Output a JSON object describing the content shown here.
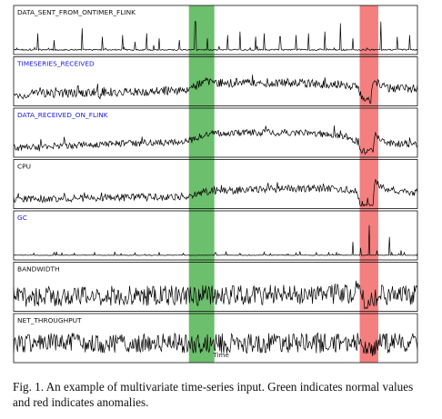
{
  "chart_data": {
    "type": "line",
    "xlabel": "Time",
    "ylabel": "",
    "grid": false,
    "x_extent": [
      0,
      1
    ],
    "highlights": [
      {
        "kind": "normal",
        "color": "#6cbf6c",
        "x_start": 0.434,
        "x_end": 0.497
      },
      {
        "kind": "anomaly",
        "color": "#f47f7f",
        "x_start": 0.857,
        "x_end": 0.903
      }
    ],
    "series": [
      {
        "name": "DATA_SENT_FROM_ONTIMER_FLINK",
        "label_color": "#111111",
        "style": "spiky",
        "baseline": 0.06,
        "noise": 0.02,
        "spikes": [
          [
            0.06,
            0.55
          ],
          [
            0.1,
            0.35
          ],
          [
            0.17,
            0.7
          ],
          [
            0.22,
            0.45
          ],
          [
            0.27,
            0.5
          ],
          [
            0.3,
            0.3
          ],
          [
            0.33,
            0.55
          ],
          [
            0.36,
            0.4
          ],
          [
            0.41,
            0.35
          ],
          [
            0.45,
            0.9
          ],
          [
            0.48,
            0.4
          ],
          [
            0.53,
            0.5
          ],
          [
            0.56,
            0.6
          ],
          [
            0.6,
            0.45
          ],
          [
            0.62,
            0.55
          ],
          [
            0.66,
            0.45
          ],
          [
            0.7,
            0.5
          ],
          [
            0.73,
            0.55
          ],
          [
            0.77,
            0.6
          ],
          [
            0.81,
            0.85
          ],
          [
            0.84,
            0.4
          ],
          [
            0.91,
            0.9
          ],
          [
            0.95,
            0.45
          ],
          [
            0.98,
            0.5
          ]
        ]
      },
      {
        "name": "TIMESERIES_RECEIVED",
        "label_color": "#1a1ad9",
        "style": "noisy",
        "levels": [
          [
            0,
            0.2
          ],
          [
            0.06,
            0.3
          ],
          [
            0.12,
            0.28
          ],
          [
            0.25,
            0.32
          ],
          [
            0.43,
            0.38
          ],
          [
            0.47,
            0.62
          ],
          [
            0.5,
            0.6
          ],
          [
            0.6,
            0.62
          ],
          [
            0.7,
            0.6
          ],
          [
            0.8,
            0.55
          ],
          [
            0.85,
            0.5
          ],
          [
            0.868,
            0.04
          ],
          [
            0.885,
            0.08
          ],
          [
            0.89,
            0.7
          ],
          [
            0.92,
            0.45
          ],
          [
            1,
            0.42
          ]
        ],
        "noise": 0.13
      },
      {
        "name": "DATA_RECEIVED_ON_FLINK",
        "label_color": "#1a1ad9",
        "style": "noisy",
        "levels": [
          [
            0,
            0.2
          ],
          [
            0.1,
            0.25
          ],
          [
            0.2,
            0.3
          ],
          [
            0.35,
            0.35
          ],
          [
            0.43,
            0.38
          ],
          [
            0.47,
            0.6
          ],
          [
            0.5,
            0.62
          ],
          [
            0.6,
            0.65
          ],
          [
            0.7,
            0.65
          ],
          [
            0.78,
            0.6
          ],
          [
            0.82,
            0.55
          ],
          [
            0.85,
            0.4
          ],
          [
            0.86,
            0.08
          ],
          [
            0.89,
            0.1
          ],
          [
            0.895,
            0.62
          ],
          [
            0.92,
            0.35
          ],
          [
            1,
            0.3
          ]
        ],
        "noise": 0.1
      },
      {
        "name": "CPU",
        "label_color": "#111111",
        "style": "noisy",
        "levels": [
          [
            0,
            0.2
          ],
          [
            0.12,
            0.22
          ],
          [
            0.3,
            0.25
          ],
          [
            0.43,
            0.28
          ],
          [
            0.46,
            0.4
          ],
          [
            0.5,
            0.45
          ],
          [
            0.6,
            0.48
          ],
          [
            0.7,
            0.52
          ],
          [
            0.8,
            0.5
          ],
          [
            0.85,
            0.45
          ],
          [
            0.86,
            0.04
          ],
          [
            0.89,
            0.05
          ],
          [
            0.895,
            0.7
          ],
          [
            0.92,
            0.5
          ],
          [
            1,
            0.4
          ]
        ],
        "noise": 0.11
      },
      {
        "name": "GC",
        "label_color": "#1a1ad9",
        "style": "spiky",
        "baseline": 0.06,
        "noise": 0.01,
        "spikes": [
          [
            0.05,
            0.12
          ],
          [
            0.1,
            0.15
          ],
          [
            0.15,
            0.12
          ],
          [
            0.2,
            0.14
          ],
          [
            0.25,
            0.16
          ],
          [
            0.3,
            0.13
          ],
          [
            0.36,
            0.15
          ],
          [
            0.42,
            0.12
          ],
          [
            0.5,
            0.14
          ],
          [
            0.56,
            0.12
          ],
          [
            0.62,
            0.15
          ],
          [
            0.7,
            0.13
          ],
          [
            0.75,
            0.14
          ],
          [
            0.78,
            0.15
          ],
          [
            0.8,
            0.14
          ],
          [
            0.84,
            0.35
          ],
          [
            0.86,
            0.28
          ],
          [
            0.88,
            0.95
          ],
          [
            0.9,
            0.2
          ],
          [
            0.93,
            0.6
          ],
          [
            0.96,
            0.15
          ]
        ]
      },
      {
        "name": "BANDWIDTH",
        "label_color": "#111111",
        "style": "dense",
        "levels": [
          [
            0,
            0.35
          ],
          [
            0.3,
            0.38
          ],
          [
            0.6,
            0.4
          ],
          [
            0.84,
            0.45
          ],
          [
            0.86,
            0.75
          ],
          [
            0.87,
            0.15
          ],
          [
            0.89,
            0.18
          ],
          [
            0.9,
            0.4
          ],
          [
            1,
            0.4
          ]
        ],
        "noise": 0.3
      },
      {
        "name": "NET_THROUGHPUT",
        "label_color": "#111111",
        "style": "dense",
        "levels": [
          [
            0,
            0.5
          ],
          [
            0.3,
            0.5
          ],
          [
            0.6,
            0.5
          ],
          [
            0.84,
            0.5
          ],
          [
            0.86,
            0.65
          ],
          [
            0.87,
            0.3
          ],
          [
            0.89,
            0.25
          ],
          [
            0.9,
            0.5
          ],
          [
            1,
            0.5
          ]
        ],
        "noise": 0.3
      }
    ]
  },
  "caption": "Fig. 1.  An example of multivariate time-series input. Green indicates normal values and red indicates anomalies."
}
